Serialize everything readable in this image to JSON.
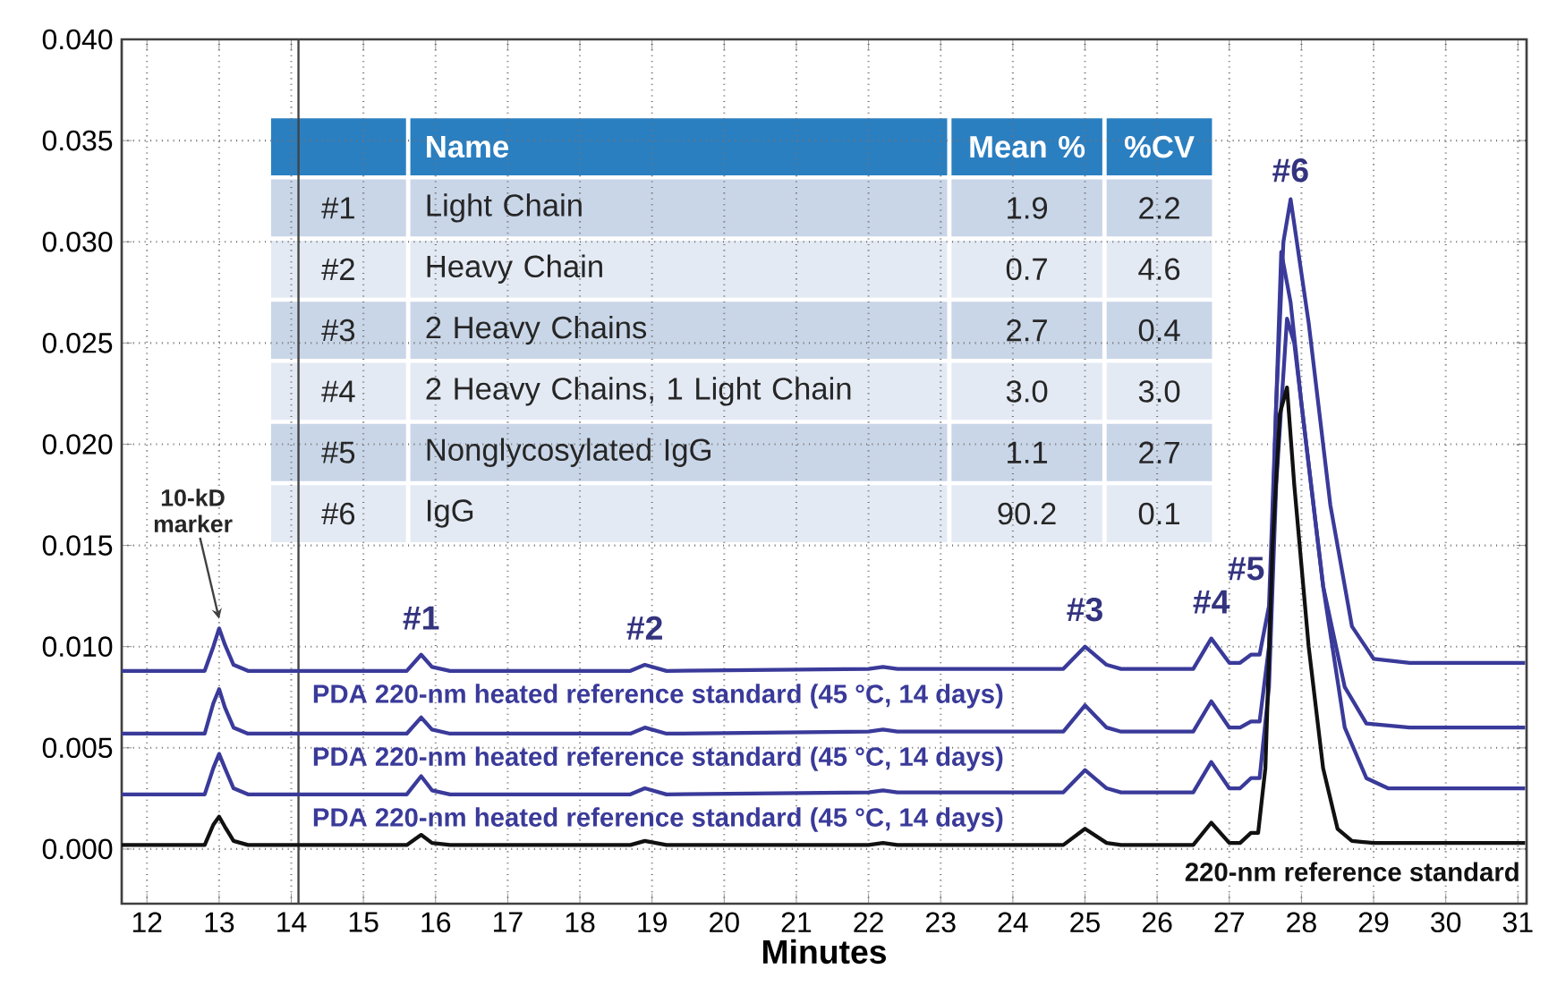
{
  "chart_data": {
    "type": "line",
    "xlabel": "Minutes",
    "xlim": [
      11.65,
      31.12
    ],
    "ylim": [
      -0.0027,
      0.04
    ],
    "xticks": [
      12,
      13,
      14,
      15,
      16,
      17,
      18,
      19,
      20,
      21,
      22,
      23,
      24,
      25,
      26,
      27,
      28,
      29,
      30,
      31
    ],
    "yticks": [
      {
        "value": 0,
        "label": "0.000"
      },
      {
        "value": 0.005,
        "label": "0.005"
      },
      {
        "value": 0.01,
        "label": "0.010"
      },
      {
        "value": 0.015,
        "label": "0.015"
      },
      {
        "value": 0.02,
        "label": "0.020"
      },
      {
        "value": 0.025,
        "label": "0.025"
      },
      {
        "value": 0.03,
        "label": "0.030"
      },
      {
        "value": 0.035,
        "label": "0.035"
      },
      {
        "value": 0.04,
        "label": "0.040"
      }
    ],
    "grid": true,
    "marker": "none",
    "line_style": "solid",
    "ref_lines": [
      {
        "axis": "x",
        "value": 14.1,
        "color": "#444444"
      }
    ],
    "series": [
      {
        "name": "PDA 220-nm heated reference standard (45 °C, 14 days)",
        "color": "#3a3a9a",
        "x": [
          11.65,
          12.8,
          12.92,
          13.0,
          13.08,
          13.2,
          13.4,
          15.6,
          15.8,
          15.95,
          16.2,
          18.7,
          18.9,
          19.2,
          22.0,
          22.2,
          22.4,
          24.7,
          25.0,
          25.3,
          25.5,
          26.5,
          26.75,
          27.0,
          27.15,
          27.3,
          27.42,
          27.55,
          27.65,
          27.75,
          27.85,
          28.1,
          28.4,
          28.7,
          29.0,
          29.5,
          31.1
        ],
        "values": [
          0.0088,
          0.0088,
          0.01,
          0.0109,
          0.0101,
          0.0091,
          0.0088,
          0.0088,
          0.0096,
          0.009,
          0.0088,
          0.0088,
          0.0091,
          0.0088,
          0.0089,
          0.009,
          0.0089,
          0.0089,
          0.01,
          0.0091,
          0.0089,
          0.0089,
          0.0104,
          0.0092,
          0.0092,
          0.0096,
          0.0096,
          0.012,
          0.022,
          0.03,
          0.0321,
          0.026,
          0.017,
          0.011,
          0.0094,
          0.0092,
          0.0092
        ]
      },
      {
        "name": "PDA 220-nm heated reference standard (45 °C, 14 days)",
        "color": "#3a3a9a",
        "x": [
          11.65,
          12.8,
          12.92,
          13.0,
          13.08,
          13.2,
          13.4,
          15.6,
          15.8,
          15.95,
          16.2,
          18.7,
          18.9,
          19.2,
          22.0,
          22.2,
          22.4,
          24.7,
          25.0,
          25.3,
          25.5,
          26.5,
          26.75,
          27.0,
          27.15,
          27.3,
          27.42,
          27.55,
          27.65,
          27.72,
          27.85,
          28.0,
          28.3,
          28.6,
          28.9,
          29.5,
          31.1
        ],
        "values": [
          0.0057,
          0.0057,
          0.0072,
          0.0079,
          0.007,
          0.006,
          0.0057,
          0.0057,
          0.0065,
          0.0059,
          0.0057,
          0.0057,
          0.006,
          0.0057,
          0.0058,
          0.0059,
          0.0058,
          0.0058,
          0.0071,
          0.006,
          0.0058,
          0.0058,
          0.0073,
          0.006,
          0.006,
          0.0063,
          0.0063,
          0.01,
          0.022,
          0.0295,
          0.027,
          0.022,
          0.013,
          0.008,
          0.0062,
          0.006,
          0.006
        ]
      },
      {
        "name": "PDA 220-nm heated reference standard (45 °C, 14 days)",
        "color": "#3a3a9a",
        "x": [
          11.65,
          12.8,
          12.92,
          13.0,
          13.08,
          13.2,
          13.4,
          15.6,
          15.8,
          15.95,
          16.2,
          18.7,
          18.9,
          19.2,
          22.0,
          22.2,
          22.4,
          24.7,
          25.0,
          25.3,
          25.5,
          26.5,
          26.75,
          27.0,
          27.15,
          27.3,
          27.42,
          27.55,
          27.65,
          27.8,
          27.9,
          28.0,
          28.3,
          28.6,
          28.9,
          29.2,
          31.1
        ],
        "values": [
          0.0027,
          0.0027,
          0.004,
          0.0047,
          0.004,
          0.003,
          0.0027,
          0.0027,
          0.0036,
          0.0029,
          0.0027,
          0.0027,
          0.003,
          0.0027,
          0.0028,
          0.0029,
          0.0028,
          0.0028,
          0.0039,
          0.003,
          0.0028,
          0.0028,
          0.0043,
          0.003,
          0.003,
          0.0035,
          0.0035,
          0.008,
          0.018,
          0.0262,
          0.025,
          0.022,
          0.013,
          0.006,
          0.0035,
          0.003,
          0.003
        ]
      },
      {
        "name": "220-nm reference standard",
        "color": "#111111",
        "x": [
          11.65,
          12.8,
          12.92,
          13.0,
          13.08,
          13.2,
          13.4,
          15.6,
          15.8,
          15.95,
          16.2,
          18.7,
          18.9,
          19.2,
          22.0,
          22.2,
          22.4,
          24.7,
          25.0,
          25.3,
          25.5,
          26.5,
          26.75,
          27.0,
          27.15,
          27.3,
          27.4,
          27.5,
          27.6,
          27.7,
          27.8,
          27.9,
          28.1,
          28.3,
          28.5,
          28.7,
          29.0,
          31.1
        ],
        "values": [
          0.0002,
          0.0002,
          0.0012,
          0.0016,
          0.0011,
          0.0004,
          0.0002,
          0.0002,
          0.0007,
          0.0003,
          0.0002,
          0.0002,
          0.0004,
          0.0002,
          0.0002,
          0.0003,
          0.0002,
          0.0002,
          0.001,
          0.0003,
          0.0002,
          0.0002,
          0.0013,
          0.0003,
          0.0003,
          0.0008,
          0.0008,
          0.004,
          0.015,
          0.0215,
          0.0228,
          0.018,
          0.01,
          0.004,
          0.001,
          0.0004,
          0.0003,
          0.0003
        ]
      }
    ],
    "annotations": [
      {
        "text": "10-kD marker",
        "x": 13.0,
        "y": 0.0109
      },
      {
        "text": "#1",
        "x": 15.8,
        "y": 0.01
      },
      {
        "text": "#2",
        "x": 18.9,
        "y": 0.0095
      },
      {
        "text": "#3",
        "x": 25.0,
        "y": 0.0104
      },
      {
        "text": "#4",
        "x": 26.75,
        "y": 0.0108
      },
      {
        "text": "#5",
        "x": 27.3,
        "y": 0.0096
      },
      {
        "text": "#6",
        "x": 27.85,
        "y": 0.0321
      },
      "Name",
      "Mean %",
      "%CV",
      "#1",
      "Light Chain",
      "1.9",
      "2.2",
      "#2",
      "Heavy Chain",
      "0.7",
      "4.6",
      "#3",
      "2 Heavy Chains",
      "2.7",
      "0.4",
      "#4",
      "2 Heavy Chains, 1 Light Chain",
      "3.0",
      "3.0",
      "#5",
      "Nonglycosylated IgG",
      "1.1",
      "2.7",
      "#6",
      "IgG",
      "90.2",
      "0.1"
    ]
  }
}
